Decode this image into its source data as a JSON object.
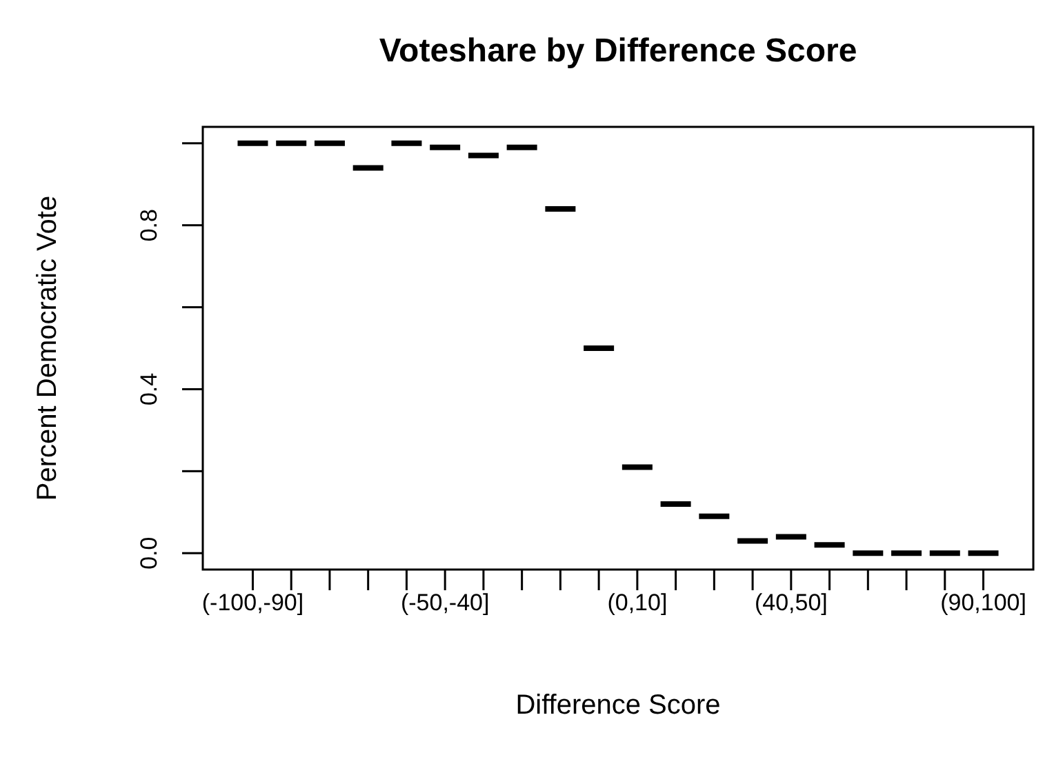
{
  "chart_data": {
    "type": "box",
    "title": "Voteshare by Difference Score",
    "xlabel": "Difference Score",
    "ylabel": "Percent Democratic Vote",
    "categories": [
      "(-100,-90]",
      null,
      null,
      null,
      null,
      "(-50,-40]",
      null,
      null,
      null,
      null,
      "(0,10]",
      null,
      null,
      null,
      "(40,50]",
      null,
      null,
      null,
      null,
      "(90,100]"
    ],
    "series": [
      {
        "color": "#000000",
        "boxes": [
          {
            "low": 1.0,
            "q1": 1.0,
            "median": 1.0,
            "q3": 1.0,
            "high": 1.0
          },
          {
            "low": 1.0,
            "q1": 1.0,
            "median": 1.0,
            "q3": 1.0,
            "high": 1.0
          },
          {
            "low": 1.0,
            "q1": 1.0,
            "median": 1.0,
            "q3": 1.0,
            "high": 1.0
          },
          {
            "low": 0.94,
            "q1": 0.94,
            "median": 0.94,
            "q3": 0.94,
            "high": 0.94
          },
          {
            "low": 1.0,
            "q1": 1.0,
            "median": 1.0,
            "q3": 1.0,
            "high": 1.0
          },
          {
            "low": 0.99,
            "q1": 0.99,
            "median": 0.99,
            "q3": 0.99,
            "high": 0.99
          },
          {
            "low": 0.97,
            "q1": 0.97,
            "median": 0.97,
            "q3": 0.97,
            "high": 0.97
          },
          {
            "low": 0.99,
            "q1": 0.99,
            "median": 0.99,
            "q3": 0.99,
            "high": 0.99
          },
          {
            "low": 0.84,
            "q1": 0.84,
            "median": 0.84,
            "q3": 0.84,
            "high": 0.84
          },
          {
            "low": 0.5,
            "q1": 0.5,
            "median": 0.5,
            "q3": 0.5,
            "high": 0.5
          },
          {
            "low": 0.21,
            "q1": 0.21,
            "median": 0.21,
            "q3": 0.21,
            "high": 0.21
          },
          {
            "low": 0.12,
            "q1": 0.12,
            "median": 0.12,
            "q3": 0.12,
            "high": 0.12
          },
          {
            "low": 0.09,
            "q1": 0.09,
            "median": 0.09,
            "q3": 0.09,
            "high": 0.09
          },
          {
            "low": 0.03,
            "q1": 0.03,
            "median": 0.03,
            "q3": 0.03,
            "high": 0.03
          },
          {
            "low": 0.04,
            "q1": 0.04,
            "median": 0.04,
            "q3": 0.04,
            "high": 0.04
          },
          {
            "low": 0.02,
            "q1": 0.02,
            "median": 0.02,
            "q3": 0.02,
            "high": 0.02
          },
          {
            "low": 0.0,
            "q1": 0.0,
            "median": 0.0,
            "q3": 0.0,
            "high": 0.0
          },
          {
            "low": 0.0,
            "q1": 0.0,
            "median": 0.0,
            "q3": 0.0,
            "high": 0.0
          },
          {
            "low": 0.0,
            "q1": 0.0,
            "median": 0.0,
            "q3": 0.0,
            "high": 0.0
          },
          {
            "low": 0.0,
            "q1": 0.0,
            "median": 0.0,
            "q3": 0.0,
            "high": 0.0
          }
        ]
      }
    ],
    "ylim": [
      -0.04,
      1.04
    ],
    "yticks": [
      {
        "value": 0,
        "label": "0.0"
      },
      {
        "value": 0.2,
        "label": null
      },
      0.4,
      {
        "value": 0.6,
        "label": null
      },
      0.8,
      {
        "value": 1.0,
        "label": null
      }
    ]
  }
}
